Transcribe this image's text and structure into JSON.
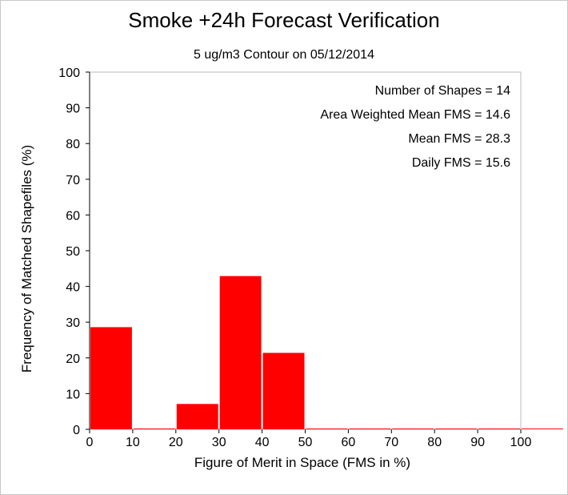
{
  "chart_data": {
    "type": "bar",
    "title": "Smoke +24h Forecast Verification",
    "subtitle": "5 ug/m3 Contour on 05/12/2014",
    "xlabel": "Figure of Merit in Space (FMS in %)",
    "ylabel": "Frequency of Matched Shapefiles (%)",
    "xlim": [
      0,
      100
    ],
    "ylim": [
      0,
      100
    ],
    "xticks": [
      0,
      10,
      20,
      30,
      40,
      50,
      60,
      70,
      80,
      90,
      100
    ],
    "yticks": [
      0,
      10,
      20,
      30,
      40,
      50,
      60,
      70,
      80,
      90,
      100
    ],
    "bins": [
      {
        "from": 0,
        "to": 10,
        "value": 28.6
      },
      {
        "from": 10,
        "to": 20,
        "value": 0
      },
      {
        "from": 20,
        "to": 30,
        "value": 7.1
      },
      {
        "from": 30,
        "to": 40,
        "value": 42.9
      },
      {
        "from": 40,
        "to": 50,
        "value": 21.4
      },
      {
        "from": 50,
        "to": 60,
        "value": 0
      },
      {
        "from": 60,
        "to": 70,
        "value": 0
      },
      {
        "from": 70,
        "to": 80,
        "value": 0
      },
      {
        "from": 80,
        "to": 90,
        "value": 0
      },
      {
        "from": 90,
        "to": 100,
        "value": 0
      },
      {
        "from": 100,
        "to": 110,
        "value": 0
      }
    ],
    "bar_color": "#ff0000",
    "annotations": [
      "Number of Shapes = 14",
      "Area Weighted Mean FMS = 14.6",
      "Mean FMS = 28.3",
      "Daily FMS = 15.6"
    ]
  }
}
